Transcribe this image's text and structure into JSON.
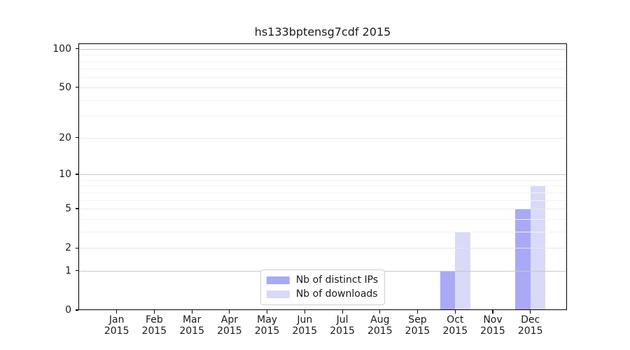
{
  "chart_data": {
    "type": "bar",
    "title": "hs133bptensg7cdf 2015",
    "year_label": "2015",
    "categories": [
      "Jan",
      "Feb",
      "Mar",
      "Apr",
      "May",
      "Jun",
      "Jul",
      "Aug",
      "Sep",
      "Oct",
      "Nov",
      "Dec"
    ],
    "series": [
      {
        "name": "Nb of distinct IPs",
        "color": "#a9a9f5",
        "values": [
          0,
          0,
          0,
          0,
          0,
          0,
          0,
          0,
          0,
          1,
          0,
          5
        ]
      },
      {
        "name": "Nb of downloads",
        "color": "#d9d9f8",
        "values": [
          0,
          0,
          0,
          0,
          0,
          0,
          0,
          0,
          0,
          3,
          0,
          8
        ]
      }
    ],
    "xlabel": "",
    "ylabel": "",
    "yscale": "log1p",
    "ylim": [
      0,
      110
    ],
    "yticks": [
      0,
      1,
      2,
      5,
      10,
      20,
      50,
      100
    ],
    "yticks_minor": [
      3,
      4,
      6,
      7,
      8,
      9,
      30,
      40,
      60,
      70,
      80,
      90
    ],
    "grid": "horizontal",
    "grid_emphasis_ticks": [
      1,
      10,
      100
    ],
    "legend_position": "lower center",
    "colors": {
      "grid_major": "#c8c8c8",
      "grid_light": "#e8e8e8",
      "grid_minor": "#f2f2f2",
      "axis": "#000000",
      "text": "#1a1a1a",
      "background": "#ffffff"
    }
  }
}
